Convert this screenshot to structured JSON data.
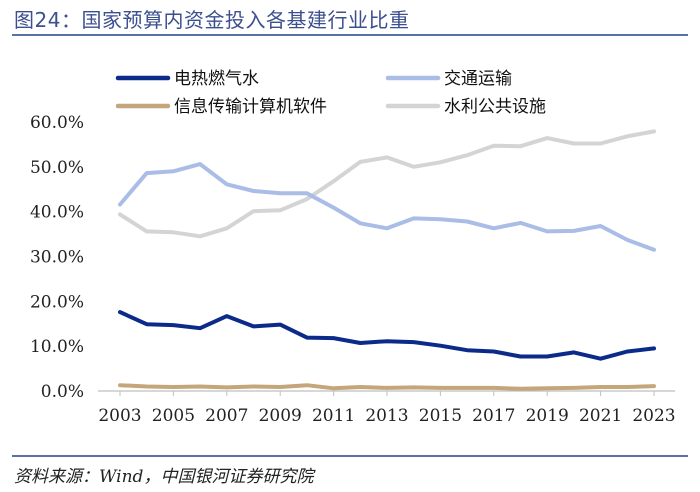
{
  "header": {
    "title": "图24：国家预算内资金投入各基建行业比重"
  },
  "footer": {
    "source": "资料来源：Wind，中国银河证券研究院"
  },
  "chart_data": {
    "type": "line",
    "title": "国家预算内资金投入各基建行业比重",
    "xlabel": "",
    "ylabel": "",
    "ylim": [
      0,
      60
    ],
    "y_ticks": [
      "0.0%",
      "10.0%",
      "20.0%",
      "30.0%",
      "40.0%",
      "50.0%",
      "60.0%"
    ],
    "x_ticks": [
      "2003",
      "2005",
      "2007",
      "2009",
      "2011",
      "2013",
      "2015",
      "2017",
      "2019",
      "2021",
      "2023"
    ],
    "x": [
      2003,
      2004,
      2005,
      2006,
      2007,
      2008,
      2009,
      2010,
      2011,
      2012,
      2013,
      2014,
      2015,
      2016,
      2017,
      2018,
      2019,
      2020,
      2021,
      2022,
      2023
    ],
    "legend_position": "top",
    "series": [
      {
        "name": "电热燃气水",
        "color": "#0b2a8a",
        "values": [
          17.6,
          14.9,
          14.7,
          14.0,
          16.7,
          14.4,
          14.8,
          11.9,
          11.8,
          10.7,
          11.1,
          10.9,
          10.1,
          9.1,
          8.8,
          7.7,
          7.7,
          8.6,
          7.2,
          8.8,
          9.5
        ]
      },
      {
        "name": "交通运输",
        "color": "#a9bde6",
        "values": [
          41.6,
          48.6,
          49.0,
          50.6,
          46.1,
          44.6,
          44.1,
          44.1,
          40.9,
          37.4,
          36.3,
          38.5,
          38.3,
          37.8,
          36.3,
          37.5,
          35.6,
          35.7,
          36.8,
          33.7,
          31.5
        ]
      },
      {
        "name": "信息传输计算机软件",
        "color": "#c4a67a",
        "values": [
          1.3,
          1.0,
          0.9,
          1.0,
          0.8,
          1.0,
          0.9,
          1.3,
          0.6,
          0.9,
          0.7,
          0.8,
          0.7,
          0.7,
          0.7,
          0.5,
          0.6,
          0.7,
          0.9,
          0.9,
          1.1
        ]
      },
      {
        "name": "水利公共设施",
        "color": "#d4d4d4",
        "values": [
          39.4,
          35.6,
          35.4,
          34.5,
          36.3,
          40.1,
          40.3,
          42.8,
          46.8,
          51.1,
          52.1,
          50.0,
          51.0,
          52.6,
          54.7,
          54.6,
          56.4,
          55.2,
          55.2,
          56.8,
          57.9
        ]
      }
    ]
  }
}
